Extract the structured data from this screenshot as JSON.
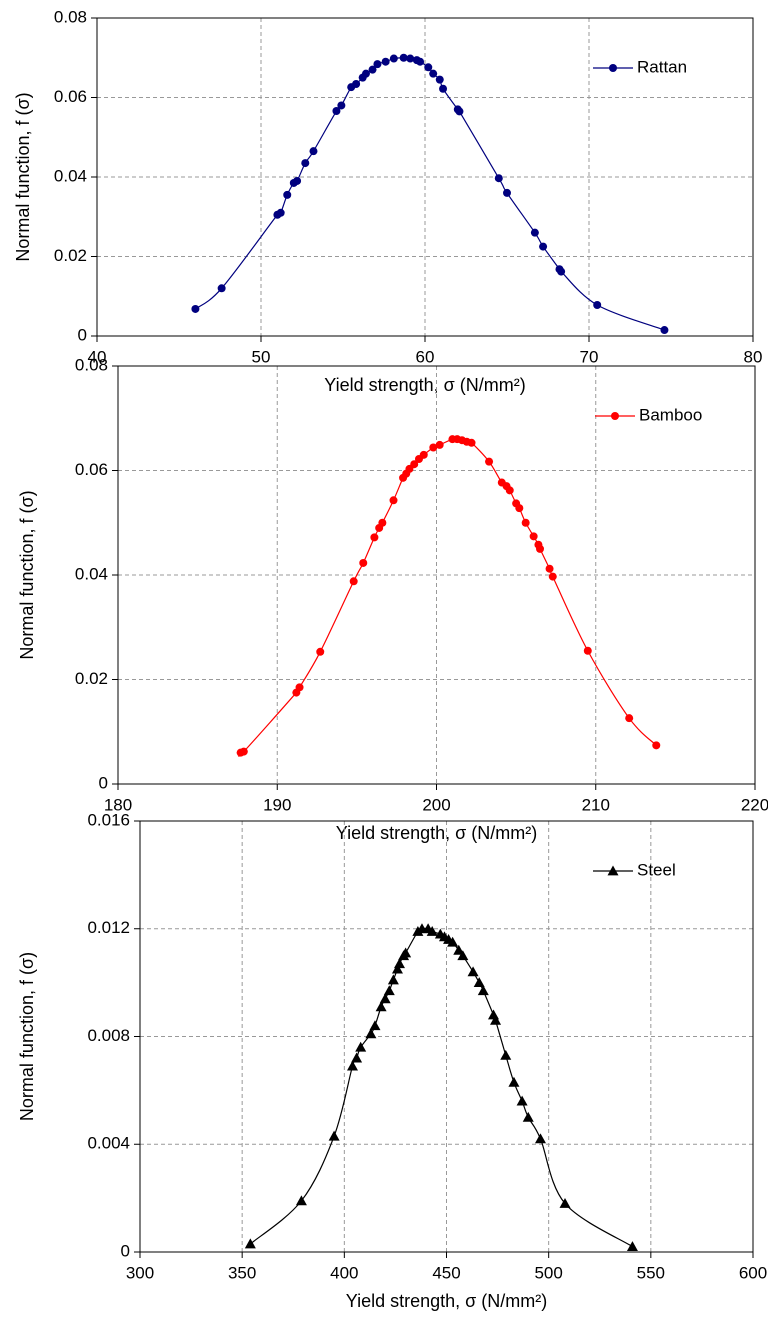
{
  "chart_data": [
    {
      "type": "line",
      "x_label": "Yield strength, σ (N/mm²)",
      "y_label": "Normal function, f (σ)",
      "xlim": [
        40,
        80
      ],
      "xticks": [
        40,
        50,
        60,
        70,
        80
      ],
      "ylim": [
        0,
        0.08
      ],
      "yticks": [
        0,
        0.02,
        0.04,
        0.06,
        0.08
      ],
      "grid": true,
      "legend": "upper right",
      "x": [
        46.0,
        47.6,
        51.0,
        51.2,
        51.6,
        52.0,
        52.2,
        52.7,
        53.2,
        54.6,
        54.9,
        55.5,
        55.8,
        56.2,
        56.4,
        56.8,
        57.1,
        57.6,
        58.1,
        58.7,
        59.1,
        59.5,
        59.7,
        60.2,
        60.5,
        60.9,
        61.1,
        62.0,
        62.1,
        64.5,
        65.0,
        66.7,
        67.2,
        68.2,
        68.3,
        70.5,
        74.6
      ],
      "series": [
        {
          "name": "Rattan",
          "color": "#00007f",
          "marker": "circle",
          "values": [
            0.0068,
            0.012,
            0.0305,
            0.031,
            0.0355,
            0.0385,
            0.039,
            0.0435,
            0.0465,
            0.0566,
            0.058,
            0.0626,
            0.0634,
            0.065,
            0.066,
            0.067,
            0.0684,
            0.069,
            0.0698,
            0.07,
            0.0698,
            0.0694,
            0.069,
            0.0676,
            0.066,
            0.0645,
            0.0622,
            0.057,
            0.0565,
            0.0397,
            0.036,
            0.026,
            0.0225,
            0.0168,
            0.0162,
            0.0078,
            0.0015
          ]
        }
      ]
    },
    {
      "type": "line",
      "x_label": "Yield strength, σ (N/mm²)",
      "y_label": "Normal function, f (σ)",
      "xlim": [
        180,
        220
      ],
      "xticks": [
        180,
        190,
        200,
        210,
        220
      ],
      "ylim": [
        0,
        0.08
      ],
      "yticks": [
        0,
        0.02,
        0.04,
        0.06,
        0.08
      ],
      "grid": true,
      "legend": "upper right",
      "x": [
        187.7,
        187.9,
        191.2,
        191.4,
        192.7,
        194.8,
        195.4,
        196.1,
        196.4,
        196.6,
        197.3,
        197.9,
        198.1,
        198.3,
        198.6,
        198.9,
        199.2,
        199.8,
        200.2,
        201.0,
        201.3,
        201.6,
        201.9,
        202.2,
        203.3,
        204.1,
        204.4,
        204.6,
        205.0,
        205.2,
        205.6,
        206.1,
        206.4,
        206.5,
        207.1,
        207.3,
        209.5,
        212.1,
        213.8
      ],
      "series": [
        {
          "name": "Bamboo",
          "color": "#ff0000",
          "marker": "circle",
          "values": [
            0.006,
            0.0062,
            0.0175,
            0.0185,
            0.0253,
            0.0388,
            0.0423,
            0.0472,
            0.049,
            0.05,
            0.0543,
            0.0586,
            0.0594,
            0.0603,
            0.0612,
            0.0622,
            0.063,
            0.0644,
            0.0649,
            0.066,
            0.066,
            0.0658,
            0.0655,
            0.0653,
            0.0617,
            0.0577,
            0.057,
            0.0562,
            0.0537,
            0.0528,
            0.05,
            0.0474,
            0.0458,
            0.045,
            0.0412,
            0.0397,
            0.0255,
            0.0126,
            0.0074
          ]
        }
      ]
    },
    {
      "type": "line",
      "x_label": "Yield strength, σ (N/mm²)",
      "y_label": "Normal function, f (σ)",
      "xlim": [
        300,
        600
      ],
      "xticks": [
        300,
        350,
        400,
        450,
        500,
        550,
        600
      ],
      "ylim": [
        0,
        0.016
      ],
      "yticks": [
        0,
        0.004,
        0.008,
        0.012,
        0.016
      ],
      "grid": true,
      "legend": "upper right",
      "x": [
        354,
        379,
        395,
        404,
        406,
        408,
        413,
        415,
        418,
        420,
        422,
        424,
        426,
        427,
        429,
        430,
        436,
        438,
        441,
        443,
        447,
        449,
        451,
        453,
        456,
        458,
        463,
        466,
        468,
        473,
        474,
        479,
        483,
        487,
        490,
        496,
        508,
        541
      ],
      "series": [
        {
          "name": "Steel",
          "color": "#000000",
          "marker": "triangle",
          "values": [
            0.0003,
            0.0019,
            0.0043,
            0.0069,
            0.0072,
            0.0076,
            0.0081,
            0.0084,
            0.0091,
            0.0094,
            0.0097,
            0.0101,
            0.0105,
            0.0107,
            0.011,
            0.0111,
            0.0119,
            0.012,
            0.012,
            0.0119,
            0.0118,
            0.0117,
            0.0116,
            0.0115,
            0.0112,
            0.011,
            0.0104,
            0.01,
            0.0097,
            0.0088,
            0.0086,
            0.0073,
            0.0063,
            0.0056,
            0.005,
            0.0042,
            0.0018,
            0.0002
          ]
        }
      ]
    }
  ]
}
